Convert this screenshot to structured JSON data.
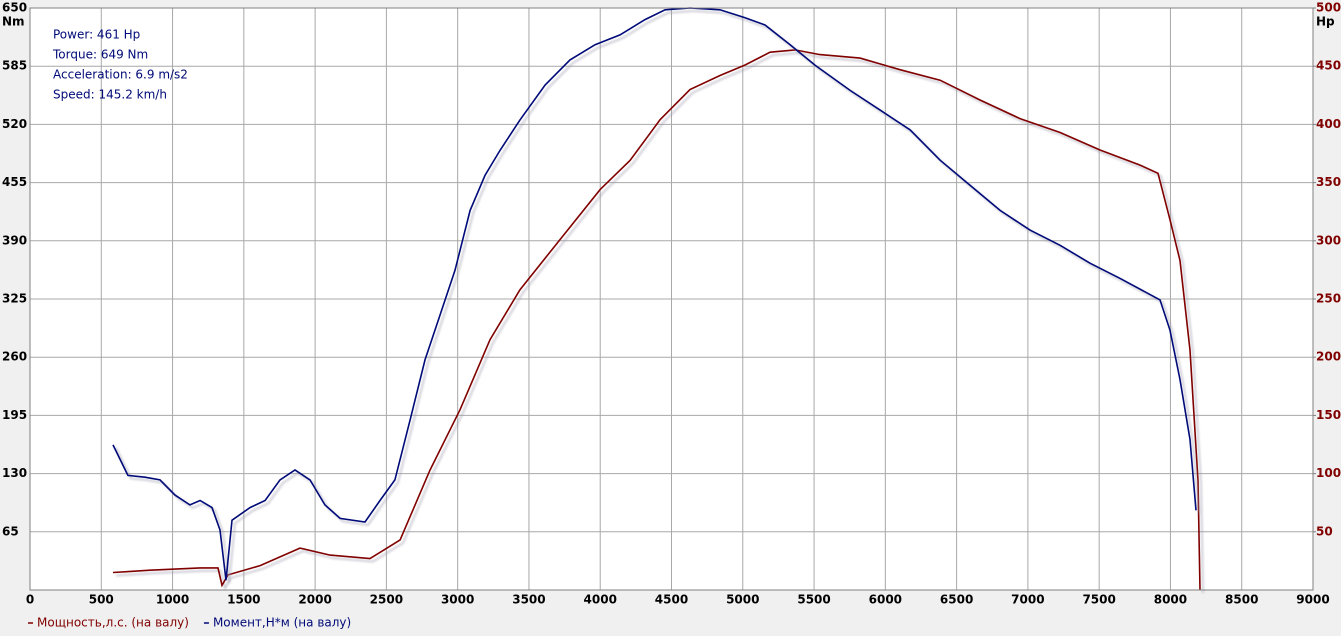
{
  "chart_data": {
    "type": "line",
    "annotations": [
      "Power: 461 Hp",
      "Torque: 649 Nm",
      "Acceleration: 6.9 m/s2",
      "Speed: 145.2 km/h"
    ],
    "ylabel": "Nm",
    "y2label": "Hp",
    "xlim": [
      0,
      9000
    ],
    "xticks": [
      0,
      500,
      1000,
      1500,
      2000,
      2500,
      3000,
      3500,
      4000,
      4500,
      5000,
      5500,
      6000,
      6500,
      7000,
      7500,
      8000,
      8500,
      9000
    ],
    "ylim": [
      0,
      650
    ],
    "yticks": [
      65,
      130,
      195,
      260,
      325,
      390,
      455,
      520,
      585,
      650
    ],
    "y2lim": [
      0,
      500
    ],
    "y2ticks": [
      50,
      100,
      150,
      200,
      250,
      300,
      350,
      400,
      450,
      500
    ],
    "grid": true,
    "series": [
      {
        "name": "Мощность,л.с. (на валу)",
        "color": "#800000",
        "axis": "y2",
        "x": [
          582,
          842,
          1193,
          1319,
          1347,
          1389,
          1614,
          1894,
          2105,
          2385,
          2596,
          2806,
          3017,
          3227,
          3437,
          3718,
          3999,
          4209,
          4420,
          4630,
          4840,
          5016,
          5192,
          5367,
          5542,
          5823,
          6103,
          6384,
          6664,
          6945,
          7226,
          7506,
          7787,
          7913,
          7997,
          8067,
          8137,
          8193,
          8207
        ],
        "values": [
          15,
          17,
          19,
          19,
          4,
          13,
          21,
          36,
          30,
          27,
          43,
          103,
          155,
          215,
          258,
          301,
          344,
          369,
          404,
          430,
          442,
          451,
          462,
          464,
          460,
          457,
          447,
          438,
          421,
          405,
          393,
          378,
          365,
          358,
          318,
          283,
          206,
          94,
          0
        ]
      },
      {
        "name": "Момент,Н*м (на валу)",
        "color": "#000a78",
        "x": [
          582,
          687,
          807,
          912,
          1017,
          1122,
          1193,
          1277,
          1333,
          1375,
          1417,
          1543,
          1649,
          1754,
          1859,
          1964,
          2069,
          2175,
          2350,
          2455,
          2560,
          2666,
          2771,
          2876,
          2981,
          3087,
          3192,
          3297,
          3437,
          3613,
          3788,
          3964,
          4139,
          4314,
          4455,
          4630,
          4840,
          5016,
          5156,
          5332,
          5507,
          5753,
          5963,
          6173,
          6384,
          6594,
          6805,
          7015,
          7226,
          7436,
          7647,
          7927,
          7997,
          8067,
          8137,
          8179
        ],
        "values": [
          162,
          128,
          126,
          123,
          106,
          95,
          100,
          92,
          67,
          11,
          78,
          92,
          100,
          123,
          134,
          123,
          95,
          80,
          76,
          100,
          123,
          190,
          257,
          307,
          357,
          424,
          463,
          491,
          525,
          564,
          592,
          609,
          620,
          637,
          648,
          650,
          648,
          639,
          631,
          609,
          586,
          558,
          536,
          514,
          480,
          452,
          424,
          402,
          385,
          365,
          348,
          324,
          290,
          235,
          168,
          89
        ]
      }
    ]
  }
}
